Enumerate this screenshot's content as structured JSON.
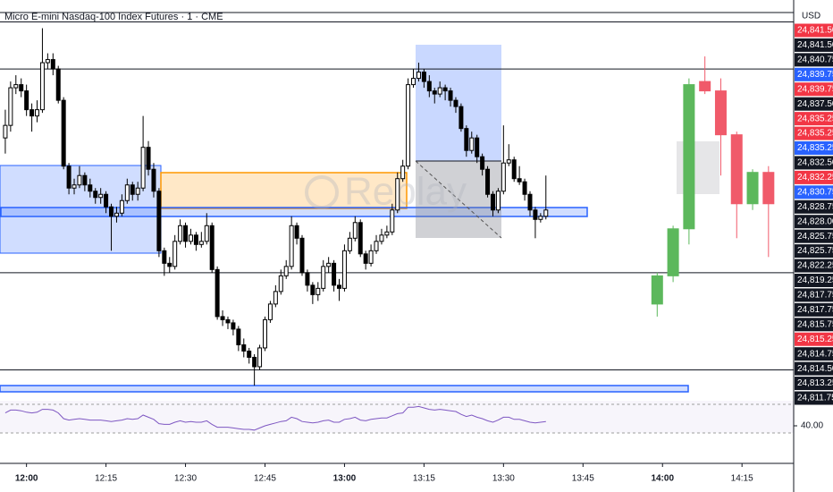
{
  "chart_data": {
    "type": "candlestick",
    "title": "Micro E-mini Nasdaq-100 Index Futures · 1 · CME",
    "currency": "USD",
    "watermark": "Replay",
    "up_color": "#ffffff",
    "down_color": "#000000",
    "border_color": "#000000",
    "projected_up_color": "#5cb85c",
    "projected_down_color": "#f05a6a",
    "xlim": [
      -1,
      148.75
    ],
    "ylim": [
      24812.25,
      24844
    ],
    "xticks": [
      {
        "value": 4,
        "label": "12:00"
      },
      {
        "value": 19,
        "label": "12:15"
      },
      {
        "value": 34,
        "label": "12:30"
      },
      {
        "value": 49,
        "label": "12:45"
      },
      {
        "value": 64,
        "label": "13:00"
      },
      {
        "value": 79,
        "label": "13:15"
      },
      {
        "value": 94,
        "label": "13:30"
      },
      {
        "value": 109,
        "label": "13:45"
      },
      {
        "value": 124,
        "label": "14:00"
      },
      {
        "value": 139,
        "label": "14:15"
      }
    ],
    "bold_xticks": [
      "12:00",
      "13:00",
      "14:00"
    ],
    "levels": [
      24843,
      24842.25,
      24838.5,
      24822.25,
      24814.5
    ],
    "price_labels": [
      {
        "label": "24,841.50",
        "color": "#f23645"
      },
      {
        "label": "24,841.50",
        "color": "#131722"
      },
      {
        "label": "24,840.75",
        "color": "#131722"
      },
      {
        "label": "24,839.75",
        "color": "#2962ff"
      },
      {
        "label": "24,839.75",
        "color": "#f23645"
      },
      {
        "label": "24,837.50",
        "color": "#131722"
      },
      {
        "label": "24,835.25",
        "color": "#f23645"
      },
      {
        "label": "24,835.25",
        "color": "#f23645"
      },
      {
        "label": "24,835.25",
        "color": "#2962ff"
      },
      {
        "label": "24,832.50",
        "color": "#131722"
      },
      {
        "label": "24,832.25",
        "color": "#f23645"
      },
      {
        "label": "24,830.75",
        "color": "#2962ff"
      },
      {
        "label": "24,828.75",
        "color": "#131722"
      },
      {
        "label": "24,828.00",
        "color": "#131722"
      },
      {
        "label": "24,825.75",
        "color": "#131722"
      },
      {
        "label": "24,825.75",
        "color": "#131722"
      },
      {
        "label": "24,822.25",
        "color": "#131722"
      },
      {
        "label": "24,819.25",
        "color": "#131722"
      },
      {
        "label": "24,817.75",
        "color": "#131722"
      },
      {
        "label": "24,817.75",
        "color": "#131722"
      },
      {
        "label": "24,815.75",
        "color": "#131722"
      },
      {
        "label": "24,815.25",
        "color": "#f23645"
      },
      {
        "label": "24,814.75",
        "color": "#131722"
      },
      {
        "label": "24,814.50",
        "color": "#131722"
      },
      {
        "label": "24,813.25",
        "color": "#131722"
      },
      {
        "label": "24,811.75",
        "color": "#131722"
      }
    ],
    "candles": [
      [
        24833,
        24835.25,
        24831.75,
        24834
      ],
      [
        24834,
        24837.5,
        24833.5,
        24837
      ],
      [
        24837,
        24838,
        24836.5,
        24837.25
      ],
      [
        24837.25,
        24837.75,
        24836.25,
        24836.75
      ],
      [
        24836.75,
        24837.25,
        24834.75,
        24835.25
      ],
      [
        24835.25,
        24835.75,
        24833.5,
        24834.75
      ],
      [
        24834.75,
        24836,
        24834.25,
        24835.25
      ],
      [
        24835.25,
        24841.75,
        24835,
        24839
      ],
      [
        24839,
        24839.75,
        24838.5,
        24839.25
      ],
      [
        24839.25,
        24839.75,
        24838,
        24838.5
      ],
      [
        24838.5,
        24838.75,
        24835.75,
        24836
      ],
      [
        24836,
        24836.25,
        24830.5,
        24830.75
      ],
      [
        24830.75,
        24831,
        24828.5,
        24829
      ],
      [
        24829,
        24829.75,
        24828.5,
        24829.25
      ],
      [
        24829.25,
        24830.75,
        24829,
        24830
      ],
      [
        24830,
        24830.25,
        24828.75,
        24829.25
      ],
      [
        24829.25,
        24829.75,
        24828.25,
        24828.75
      ],
      [
        24828.75,
        24829,
        24827.75,
        24828.25
      ],
      [
        24828.25,
        24829,
        24827.75,
        24828.5
      ],
      [
        24828.5,
        24828.75,
        24827,
        24827.5
      ],
      [
        24827.5,
        24827.75,
        24824,
        24826.75
      ],
      [
        24826.75,
        24827.5,
        24826.25,
        24827
      ],
      [
        24827,
        24828.5,
        24826.75,
        24828
      ],
      [
        24828,
        24829.75,
        24827.75,
        24829.25
      ],
      [
        24829.25,
        24829.5,
        24828,
        24828.5
      ],
      [
        24828.5,
        24829.5,
        24828,
        24829
      ],
      [
        24829,
        24834.75,
        24828.75,
        24832.25
      ],
      [
        24832.25,
        24832.75,
        24830,
        24830.5
      ],
      [
        24830.5,
        24831,
        24828.25,
        24828.75
      ],
      [
        24828.75,
        24829,
        24823.5,
        24824
      ],
      [
        24824,
        24824.25,
        24822,
        24823
      ],
      [
        24823,
        24823.5,
        24822.25,
        24822.75
      ],
      [
        24822.75,
        24825.25,
        24822.5,
        24824.75
      ],
      [
        24824.75,
        24826.5,
        24824.5,
        24826
      ],
      [
        24826,
        24826.25,
        24824.25,
        24824.75
      ],
      [
        24824.75,
        24825.75,
        24824.5,
        24825.25
      ],
      [
        24825.25,
        24825.5,
        24824,
        24824.5
      ],
      [
        24824.5,
        24825.5,
        24824.25,
        24824.75
      ],
      [
        24824.75,
        24827,
        24824.5,
        24826
      ],
      [
        24826,
        24826.25,
        24822.25,
        24822.5
      ],
      [
        24822.5,
        24822.75,
        24818.5,
        24818.75
      ],
      [
        24818.75,
        24819.25,
        24818,
        24818.5
      ],
      [
        24818.5,
        24818.75,
        24817.75,
        24818.25
      ],
      [
        24818.25,
        24818.5,
        24817.25,
        24817.75
      ],
      [
        24817.75,
        24818,
        24816,
        24816.5
      ],
      [
        24816.5,
        24817,
        24815.5,
        24816
      ],
      [
        24816,
        24816.25,
        24815,
        24815.5
      ],
      [
        24815.5,
        24815.75,
        24813.25,
        24814.75
      ],
      [
        24814.75,
        24816.5,
        24814.5,
        24816.25
      ],
      [
        24816.25,
        24818.75,
        24816,
        24818.5
      ],
      [
        24818.5,
        24820,
        24818.25,
        24819.75
      ],
      [
        24819.75,
        24821.25,
        24819.5,
        24820.75
      ],
      [
        24820.75,
        24822.5,
        24820.5,
        24822
      ],
      [
        24822,
        24823.25,
        24821.75,
        24822.75
      ],
      [
        24822.75,
        24826.75,
        24822.5,
        24826
      ],
      [
        24826,
        24826.25,
        24824.5,
        24825
      ],
      [
        24825,
        24825.25,
        24822,
        24822.25
      ],
      [
        24822.25,
        24822.5,
        24820.75,
        24821.25
      ],
      [
        24821.25,
        24821.5,
        24819.75,
        24820.5
      ],
      [
        24820.5,
        24821.5,
        24820,
        24821
      ],
      [
        24821,
        24823.25,
        24820.75,
        24822.75
      ],
      [
        24822.75,
        24823.5,
        24822.25,
        24823
      ],
      [
        24823,
        24823.25,
        24820.75,
        24821.25
      ],
      [
        24821.25,
        24821.75,
        24820,
        24821
      ],
      [
        24821,
        24824.5,
        24820.75,
        24824
      ],
      [
        24824,
        24825.5,
        24823.75,
        24825
      ],
      [
        24825,
        24826.75,
        24824.75,
        24826.25
      ],
      [
        24826.25,
        24826.5,
        24823.5,
        24823.75
      ],
      [
        24823.75,
        24824,
        24822.5,
        24823
      ],
      [
        24823,
        24824.5,
        24822.75,
        24824
      ],
      [
        24824,
        24825.25,
        24823.75,
        24824.75
      ],
      [
        24824.75,
        24825.75,
        24824.5,
        24825.25
      ],
      [
        24825.25,
        24826,
        24825,
        24825.5
      ],
      [
        24825.5,
        24827.75,
        24825.25,
        24827.25
      ],
      [
        24827.25,
        24830.25,
        24827,
        24829.75
      ],
      [
        24829.75,
        24831.25,
        24829.5,
        24830.75
      ],
      [
        24830.75,
        24837.75,
        24830.5,
        24837.25
      ],
      [
        24837.25,
        24838.5,
        24837,
        24837.75
      ],
      [
        24837.75,
        24839,
        24837.5,
        24838.25
      ],
      [
        24838.25,
        24838.5,
        24837,
        24837.5
      ],
      [
        24837.5,
        24838,
        24836.25,
        24836.75
      ],
      [
        24836.75,
        24837,
        24835.75,
        24836.5
      ],
      [
        24836.5,
        24837.5,
        24836.25,
        24837
      ],
      [
        24837,
        24837.25,
        24836,
        24836.75
      ],
      [
        24836.75,
        24837,
        24835.5,
        24836
      ],
      [
        24836,
        24836.25,
        24835,
        24835.5
      ],
      [
        24835.5,
        24835.75,
        24833.5,
        24833.75
      ],
      [
        24833.75,
        24834,
        24831.5,
        24832
      ],
      [
        24832,
        24833.5,
        24831.75,
        24833
      ],
      [
        24833,
        24833.25,
        24831,
        24831.5
      ],
      [
        24831.5,
        24831.75,
        24830,
        24830.5
      ],
      [
        24830.5,
        24830.75,
        24828.25,
        24828.5
      ],
      [
        24828.5,
        24828.75,
        24826.75,
        24827.25
      ],
      [
        24827.25,
        24829,
        24827,
        24828.75
      ],
      [
        24828.75,
        24834,
        24828.5,
        24831
      ],
      [
        24831,
        24832.5,
        24830.75,
        24831.25
      ],
      [
        24831.25,
        24831.5,
        24829.5,
        24829.75
      ],
      [
        24829.75,
        24830.75,
        24829.25,
        24829.5
      ],
      [
        24829.5,
        24829.75,
        24828,
        24828.5
      ],
      [
        24828.5,
        24828.75,
        24826.75,
        24827.25
      ],
      [
        24827.25,
        24827.5,
        24825,
        24826.5
      ],
      [
        24826.5,
        24827,
        24826.25,
        24826.75
      ],
      [
        24826.75,
        24830,
        24826.5,
        24827.25
      ]
    ],
    "projected_x": [
      123,
      126,
      129,
      132,
      135,
      138,
      141,
      144
    ],
    "projected": [
      [
        24819.75,
        24822.25,
        24818.75,
        24822
      ],
      [
        24822,
        24826,
        24821.5,
        24825.75
      ],
      [
        24825.75,
        24837.75,
        24824.5,
        24837.25
      ],
      [
        24837.5,
        24839.5,
        24836.5,
        24836.75
      ],
      [
        24836.75,
        24837.75,
        24830,
        24833.25
      ],
      [
        24833.25,
        24833.5,
        24825,
        24827.75
      ],
      [
        24827.75,
        24830.5,
        24827.25,
        24830.25
      ],
      [
        24830.25,
        24830.75,
        24823.5,
        24827.75
      ]
    ],
    "rsi_color": "#7e57c2",
    "rsi_ylim": [
      25,
      75
    ],
    "rsi_ticks": [
      {
        "value": 40,
        "label": "40.00"
      }
    ],
    "rsi": [
      58,
      62,
      62,
      61,
      59,
      58,
      59,
      63,
      63,
      62,
      58,
      50,
      48,
      49,
      50,
      49,
      48,
      48,
      48,
      47,
      46,
      47,
      48,
      50,
      49,
      50,
      55,
      52,
      49,
      43,
      42,
      42,
      45,
      47,
      45,
      46,
      45,
      45,
      47,
      42,
      38,
      38,
      38,
      37,
      36,
      35,
      35,
      34,
      37,
      40,
      42,
      44,
      46,
      47,
      52,
      50,
      46,
      45,
      44,
      45,
      47,
      48,
      45,
      45,
      49,
      50,
      52,
      48,
      47,
      49,
      50,
      51,
      51,
      54,
      57,
      58,
      66,
      66,
      67,
      65,
      63,
      62,
      63,
      62,
      61,
      60,
      56,
      53,
      55,
      52,
      50,
      47,
      45,
      48,
      52,
      52,
      49,
      49,
      47,
      45,
      44,
      45,
      46
    ]
  }
}
